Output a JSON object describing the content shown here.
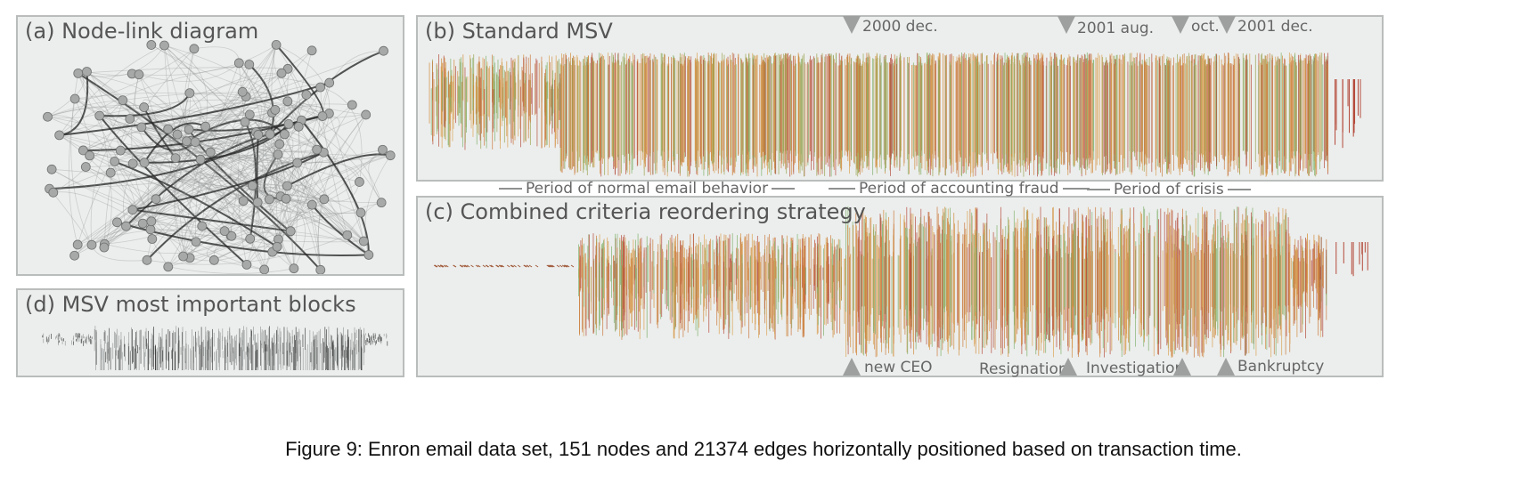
{
  "panels": {
    "a_title": "(a) Node-link diagram",
    "b_title": "(b) Standard MSV",
    "c_title": "(c) Combined criteria reordering strategy",
    "d_title": "(d) MSV most important blocks"
  },
  "top_markers": [
    "2000 dec.",
    "2001 aug.",
    "oct.",
    "2001 dec."
  ],
  "periods": [
    "Period of normal email behavior",
    "Period of accounting fraud",
    "Period of crisis"
  ],
  "bottom_markers": [
    "new CEO",
    "Resignation",
    "Investigation",
    "Bankruptcy"
  ],
  "caption": "Figure 9: Enron email data set, 151 nodes and 21374 edges horizontally positioned based on transaction time.",
  "colors": {
    "panel_bg": "#eceeed",
    "border": "#b9bdbc",
    "node": "#a9abaa",
    "orange": "#d08a3a",
    "green": "#7fb06a",
    "red": "#b4493a"
  }
}
